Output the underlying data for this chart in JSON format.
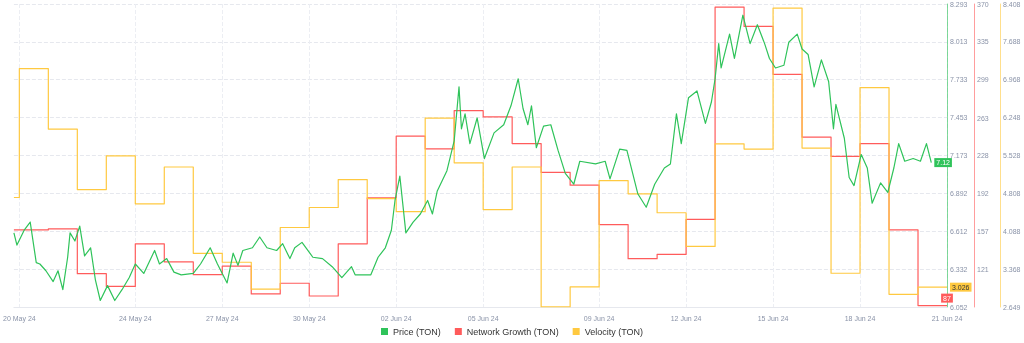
{
  "chart_data": {
    "type": "line",
    "grid": true,
    "legend": "bottom",
    "xlim": [
      "--05-19T19:30",
      "--06-21"
    ],
    "xticks": [
      {
        "value": "--05-20",
        "label": "20 May 24"
      },
      {
        "value": "--05-24",
        "label": "24 May 24"
      },
      {
        "value": "--05-27",
        "label": "27 May 24"
      },
      {
        "value": "--05-30",
        "label": "30 May 24"
      },
      {
        "value": "--06-02",
        "label": "02 Jun 24"
      },
      {
        "value": "--06-05",
        "label": "05 Jun 24"
      },
      {
        "value": "--06-09",
        "label": "09 Jun 24"
      },
      {
        "value": "--06-12",
        "label": "12 Jun 24"
      },
      {
        "value": "--06-15",
        "label": "15 Jun 24"
      },
      {
        "value": "--06-18",
        "label": "18 Jun 24"
      },
      {
        "value": "--06-21",
        "label": "21 Jun 24"
      }
    ],
    "ylim": [
      6.052,
      8.293
    ],
    "yticks": [
      6.052,
      6.332,
      6.612,
      6.892,
      7.173,
      7.453,
      7.733,
      8.013,
      8.293
    ],
    "y2lim": [
      85.7,
      370
    ],
    "y2ticks": [
      121,
      157,
      192,
      228,
      263,
      299,
      335,
      370
    ],
    "y3lim": [
      2.649,
      8.408
    ],
    "y3ticks": [
      2.649,
      3.368,
      4.088,
      4.808,
      5.528,
      6.248,
      6.968,
      7.688,
      8.408
    ],
    "series": [
      {
        "name": "Price (TON)",
        "type": "line",
        "color": "#2fc35a",
        "x": [
          "--05-19T19:30",
          "--05-19T22:00",
          "--05-20T04:00",
          "--05-20T09:00",
          "--05-20T14:00",
          "--05-20T17:00",
          "--05-20T22:00",
          "--05-21T04:00",
          "--05-21T08:00",
          "--05-21T12:00",
          "--05-21T16:00",
          "--05-21T18:00",
          "--05-21T22:00",
          "--05-22T02:00",
          "--05-22T06:00",
          "--05-22T11:00",
          "--05-22T15:00",
          "--05-22T19:00",
          "--05-23T01:00",
          "--05-23T07:00",
          "--05-23T13:00",
          "--05-23T19:00",
          "--05-24T00:00",
          "--05-24T07:00",
          "--05-24T16:00",
          "--05-24T20:00",
          "--05-25T02:00",
          "--05-25T08:00",
          "--05-25T14:00",
          "--05-26T00:00",
          "--05-26T06:00",
          "--05-26T14:00",
          "--05-26T20:00",
          "--05-27T04:00",
          "--05-27T09:00",
          "--05-27T13:00",
          "--05-27T17:00",
          "--05-28T01:00",
          "--05-28T07:00",
          "--05-28T13:00",
          "--05-28T21:00",
          "--05-29T02:00",
          "--05-29T08:00",
          "--05-29T12:00",
          "--05-29T18:00",
          "--05-30T03:00",
          "--05-30T11:00",
          "--05-30T19:00",
          "--05-31T03:00",
          "--05-31T11:00",
          "--05-31T14:00",
          "--06-01T03:00",
          "--06-01T09:00",
          "--06-01T15:00",
          "--06-01T20:00",
          "--06-01T23:00",
          "--06-02T03:00",
          "--06-02T08:00",
          "--06-02T14:00",
          "--06-02T20:00",
          "--06-03T02:00",
          "--06-03T06:00",
          "--06-03T10:00",
          "--06-03T18:00",
          "--06-04T00:00",
          "--06-04T04:00",
          "--06-04T06:00",
          "--06-04T09:00",
          "--06-04T13:00",
          "--06-04T19:00",
          "--06-05T01:00",
          "--06-05T09:00",
          "--06-05T17:00",
          "--06-05T23:00",
          "--06-06T05:00",
          "--06-06T09:00",
          "--06-06T13:00",
          "--06-06T16:00",
          "--06-06T20:00",
          "--06-07T02:00",
          "--06-07T08:00",
          "--06-07T14:00",
          "--06-07T20:00",
          "--06-08T03:00",
          "--06-08T08:00",
          "--06-08T21:00",
          "--06-09T05:00",
          "--06-09T09:00",
          "--06-09T17:00",
          "--06-09T23:00",
          "--06-10T08:00",
          "--06-10T15:00",
          "--06-10T22:00",
          "--06-11T06:00",
          "--06-11T11:00",
          "--06-11T16:00",
          "--06-11T20:00",
          "--06-12T02:00",
          "--06-12T09:00",
          "--06-12T16:00",
          "--06-12T21:00",
          "--06-13T00:00",
          "--06-13T03:00",
          "--06-13T05:00",
          "--06-13T12:00",
          "--06-13T16:00",
          "--06-13T23:00",
          "--06-14T05:00",
          "--06-14T11:00",
          "--06-14T17:00",
          "--06-14T21:00",
          "--06-15T02:00",
          "--06-15T09:00",
          "--06-15T13:00",
          "--06-15T20:00",
          "--06-16T00:00",
          "--06-16T05:00",
          "--06-16T10:00",
          "--06-16T16:00",
          "--06-16T22:00",
          "--06-17T02:00",
          "--06-17T04:00",
          "--06-17T11:00",
          "--06-17T15:00",
          "--06-17T19:00",
          "--06-18T01:00",
          "--06-18T06:00",
          "--06-18T10:00",
          "--06-18T17:00",
          "--06-18T23:00",
          "--06-19T04:00",
          "--06-19T08:00",
          "--06-19T13:00",
          "--06-19T20:00",
          "--06-20T02:00",
          "--06-20T07:00",
          "--06-20T11:00"
        ],
        "values": [
          6.6,
          6.51,
          6.62,
          6.68,
          6.38,
          6.37,
          6.32,
          6.24,
          6.32,
          6.18,
          6.42,
          6.6,
          6.54,
          6.65,
          6.43,
          6.49,
          6.25,
          6.1,
          6.21,
          6.1,
          6.18,
          6.27,
          6.37,
          6.3,
          6.47,
          6.37,
          6.41,
          6.31,
          6.29,
          6.3,
          6.37,
          6.49,
          6.37,
          6.23,
          6.45,
          6.36,
          6.47,
          6.49,
          6.57,
          6.49,
          6.47,
          6.52,
          6.41,
          6.49,
          6.53,
          6.42,
          6.41,
          6.35,
          6.27,
          6.35,
          6.29,
          6.29,
          6.42,
          6.49,
          6.62,
          6.84,
          7.02,
          6.6,
          6.68,
          6.74,
          6.84,
          6.74,
          6.91,
          7.06,
          7.28,
          7.68,
          7.37,
          7.48,
          7.26,
          7.45,
          7.15,
          7.34,
          7.4,
          7.54,
          7.74,
          7.52,
          7.4,
          7.54,
          7.23,
          7.39,
          7.4,
          7.21,
          7.04,
          6.96,
          7.13,
          7.11,
          7.13,
          7,
          7.22,
          7.21,
          6.89,
          6.79,
          6.96,
          7.08,
          7.11,
          7.48,
          7.26,
          7.6,
          7.65,
          7.41,
          7.57,
          7.74,
          8,
          7.82,
          8.07,
          7.89,
          8.21,
          8,
          8.14,
          8,
          7.89,
          7.82,
          7.84,
          8.01,
          8.07,
          7.96,
          7.92,
          7.68,
          7.88,
          7.72,
          7.37,
          7.55,
          7.3,
          7.01,
          6.95,
          7.18,
          7.08,
          6.82,
          6.97,
          6.9,
          7.08,
          7.26,
          7.13,
          7.15,
          7.13,
          7.26,
          7.12
        ],
        "value_labels": [
          null,
          null,
          null,
          null,
          null,
          null,
          null,
          null,
          null,
          null,
          null,
          null,
          null,
          null,
          null,
          null,
          null,
          null,
          null,
          null,
          null,
          null,
          null,
          null,
          null,
          null,
          null,
          null,
          null,
          null,
          null,
          null,
          null,
          null,
          null,
          null,
          null,
          null,
          null,
          null,
          null,
          null,
          null,
          null,
          null,
          null,
          null,
          null,
          null,
          null,
          null,
          null,
          null,
          null,
          null,
          null,
          null,
          null,
          null,
          null,
          null,
          null,
          null,
          null,
          null,
          null,
          null,
          null,
          null,
          null,
          null,
          null,
          null,
          null,
          null,
          null,
          null,
          null,
          null,
          null,
          null,
          null,
          null,
          null,
          null,
          null,
          null,
          null,
          null,
          null,
          null,
          null,
          null,
          null,
          null,
          null,
          null,
          null,
          null,
          null,
          null,
          null,
          null,
          null,
          null,
          null,
          null,
          null,
          null,
          null,
          null,
          null,
          null,
          null,
          null,
          null,
          null,
          null,
          null,
          null,
          null,
          null,
          null,
          null,
          null,
          null,
          null,
          null,
          null,
          null,
          null,
          null,
          null,
          null,
          null,
          null,
          "7.12"
        ]
      },
      {
        "name": "Network Growth (TON)",
        "type": "step",
        "axis": "y2",
        "color": "#ff5b5b",
        "x": [
          "--05-19T19:30",
          "--05-21",
          "--05-22",
          "--05-23",
          "--05-24",
          "--05-25",
          "--05-26",
          "--05-27",
          "--05-28",
          "--05-29",
          "--05-30",
          "--05-31",
          "--06-01",
          "--06-02",
          "--06-03",
          "--06-04",
          "--06-05",
          "--06-06",
          "--06-07",
          "--06-08",
          "--06-09",
          "--06-10",
          "--06-11",
          "--06-12",
          "--06-13",
          "--06-14",
          "--06-15",
          "--06-16",
          "--06-17",
          "--06-18",
          "--06-19",
          "--06-20",
          "--06-21"
        ],
        "values": [
          158,
          159,
          117,
          105,
          145,
          128,
          116,
          124,
          98,
          108,
          96,
          145,
          188,
          246,
          234,
          270,
          264,
          239,
          212,
          200,
          163,
          131,
          135,
          168,
          367,
          349,
          304,
          245,
          227,
          239,
          158,
          87,
          87
        ],
        "value_labels": [
          null,
          null,
          null,
          null,
          null,
          null,
          null,
          null,
          null,
          null,
          null,
          null,
          null,
          null,
          null,
          null,
          null,
          null,
          null,
          null,
          null,
          null,
          null,
          null,
          null,
          null,
          null,
          null,
          null,
          null,
          null,
          null,
          "87"
        ]
      },
      {
        "name": "Velocity (TON)",
        "type": "step",
        "axis": "y3",
        "color": "#ffc940",
        "x": [
          "--05-19T19:30",
          "--05-20",
          "--05-21",
          "--05-22",
          "--05-23",
          "--05-24",
          "--05-25",
          "--05-26",
          "--05-27",
          "--05-28",
          "--05-29",
          "--05-30",
          "--05-31",
          "--06-01",
          "--06-02",
          "--06-03",
          "--06-04",
          "--06-05",
          "--06-06",
          "--06-07",
          "--06-08",
          "--06-09",
          "--06-10",
          "--06-11",
          "--06-12",
          "--06-13",
          "--06-14",
          "--06-15",
          "--06-16",
          "--06-17",
          "--06-18",
          "--06-19",
          "--06-20",
          "--06-21"
        ],
        "values": [
          4.73,
          7.18,
          6.03,
          4.88,
          5.52,
          4.61,
          5.31,
          3.67,
          3.5,
          2.99,
          4.16,
          4.54,
          5.07,
          4.71,
          4.46,
          6.24,
          5.39,
          4.5,
          5.31,
          2.65,
          3.03,
          5.05,
          4.8,
          4.44,
          3.8,
          5.75,
          5.65,
          8.33,
          5.67,
          3.29,
          6.82,
          2.89,
          3.026,
          3.026
        ],
        "value_labels": [
          null,
          null,
          null,
          null,
          null,
          null,
          null,
          null,
          null,
          null,
          null,
          null,
          null,
          null,
          null,
          null,
          null,
          null,
          null,
          null,
          null,
          null,
          null,
          null,
          null,
          null,
          null,
          null,
          null,
          null,
          null,
          null,
          null,
          "3.026"
        ]
      }
    ]
  }
}
